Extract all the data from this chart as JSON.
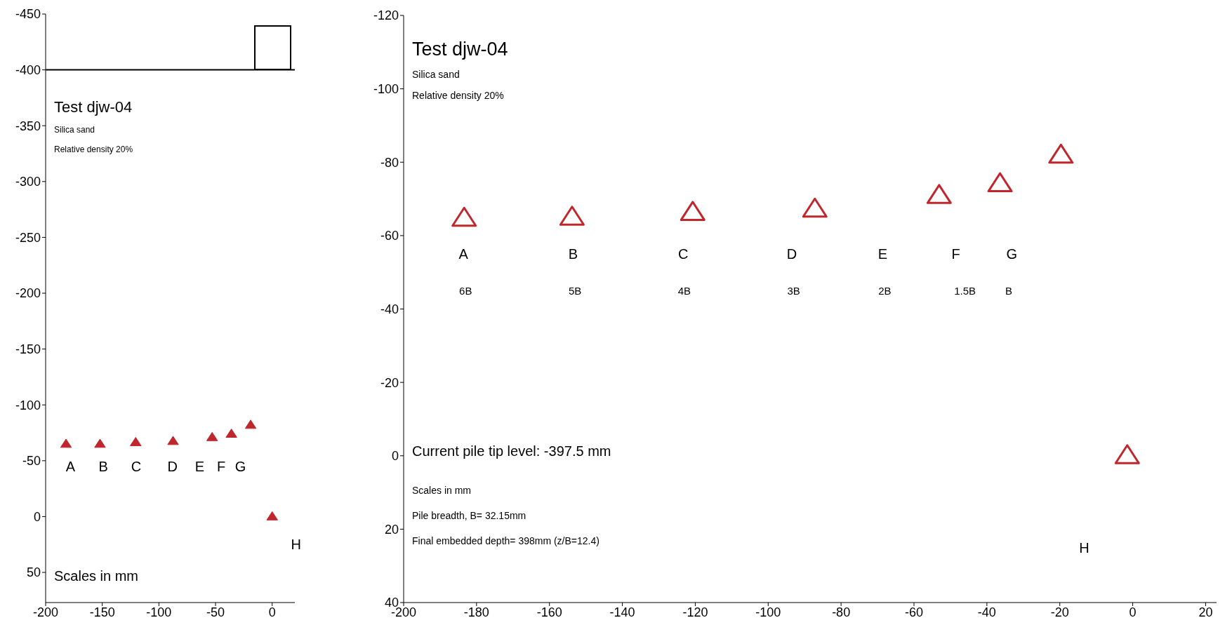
{
  "chart_data": [
    {
      "type": "scatter",
      "title": "Test djw-04",
      "marker": "triangle",
      "x": [
        -182,
        -152,
        -120.5,
        -87.5,
        -53,
        -36,
        -19,
        0
      ],
      "series": [
        {
          "color": "#c0272d",
          "values": [
            -65,
            -65,
            -66.5,
            -67.5,
            -71,
            -74,
            -82,
            0
          ]
        }
      ],
      "xlim": [
        -200,
        20
      ],
      "xticks": [
        -200,
        -150,
        -100,
        -50,
        0
      ],
      "ylim": [
        77,
        -450
      ],
      "yticks": [
        -450,
        -400,
        -350,
        -300,
        -250,
        -200,
        -150,
        -100,
        -50,
        0,
        50
      ],
      "ref_lines": [
        {
          "axis": "y",
          "value": -400,
          "color": "#000000"
        }
      ],
      "annotations": [
        "Silica sand",
        "Relative density 20%",
        "Scales in mm",
        "A",
        "B",
        "C",
        "D",
        "E",
        "F",
        "G",
        "H"
      ]
    },
    {
      "type": "scatter",
      "title": "Test djw-04",
      "marker": "triangle",
      "x": [
        -183.4,
        -153.8,
        -120.7,
        -87.2,
        -53.1,
        -36.4,
        -19.7,
        -1.5
      ],
      "series": [
        {
          "color": "#c0272d",
          "values": [
            -64.7,
            -65,
            -66.3,
            -67.2,
            -70.9,
            -74.1,
            -81.9,
            0
          ]
        }
      ],
      "xlim": [
        -200,
        23
      ],
      "xticks": [
        -200,
        -180,
        -160,
        -140,
        -120,
        -100,
        -80,
        -60,
        -40,
        -20,
        0,
        20
      ],
      "ylim": [
        40,
        -120
      ],
      "yticks": [
        -120,
        -100,
        -80,
        -60,
        -40,
        -20,
        0,
        20,
        40
      ],
      "annotations": [
        "Silica sand",
        "Relative density 20%",
        "Current pile tip level: -397.5 mm",
        "Scales in mm",
        "Pile breadth, B= 32.15mm",
        "Final embedded depth= 398mm (z/B=12.4)",
        "A",
        "B",
        "C",
        "D",
        "E",
        "F",
        "G",
        "6B",
        "5B",
        "4B",
        "3B",
        "2B",
        "1.5B",
        "B",
        "H"
      ]
    }
  ]
}
